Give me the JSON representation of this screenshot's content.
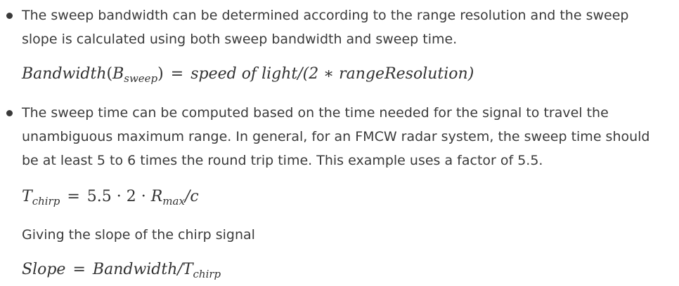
{
  "items": [
    {
      "text": "The sweep bandwidth can be determined according to the range resolution and the sweep slope is calculated using both sweep bandwidth and sweep time.",
      "equation": {
        "lhs_var": "Bandwidth",
        "lhs_inner": "B",
        "lhs_sub": "sweep",
        "eq": "=",
        "rhs": "speed of light/(2 ∗ rangeResolution)"
      }
    },
    {
      "text": "The sweep time can be computed based on the time needed for the signal to travel the unambiguous maximum range. In general, for an FMCW radar system, the sweep time should be at least 5 to 6 times the round trip time. This example uses a factor of 5.5.",
      "equation": {
        "lhs_var": "T",
        "lhs_sub": "chirp",
        "eq": "=",
        "rhs_pre": "5.5 · 2 · ",
        "rhs_var": "R",
        "rhs_sub": "max",
        "rhs_post": "/c"
      },
      "note": "Giving the slope of the chirp signal",
      "equation2": {
        "lhs_var": "Slope",
        "eq": "=",
        "rhs_pre": "Bandwidth/",
        "rhs_var": "T",
        "rhs_sub": "chirp"
      }
    }
  ]
}
